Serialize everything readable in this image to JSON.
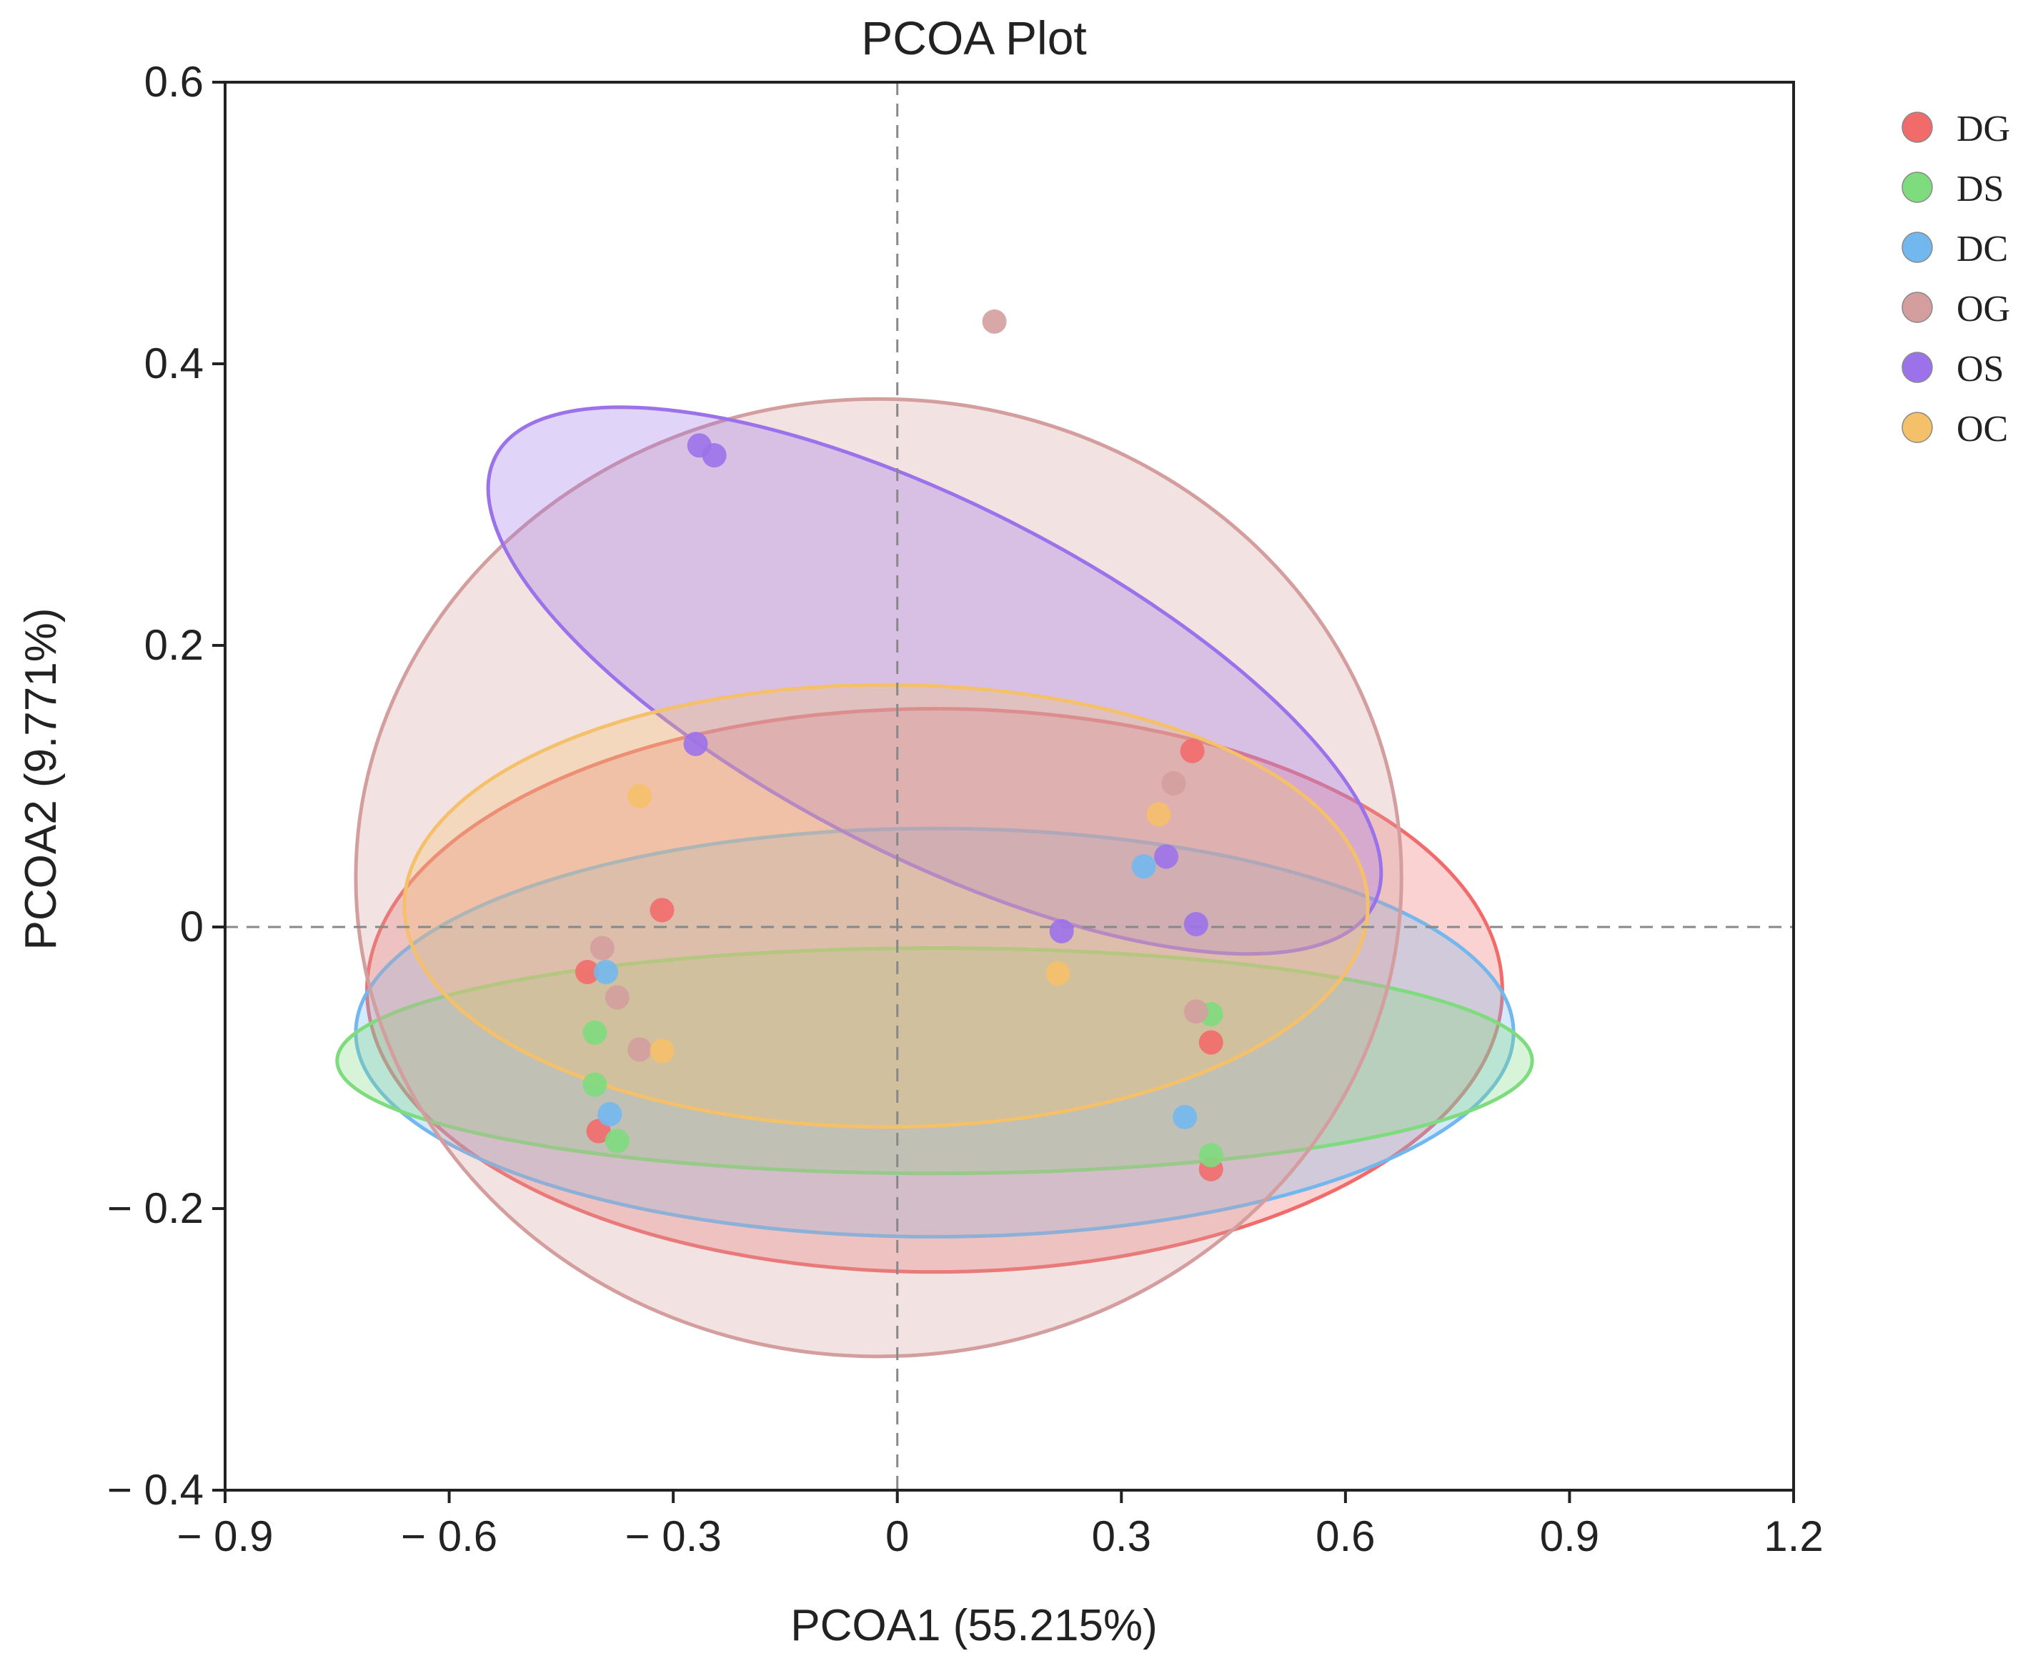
{
  "chart_data": {
    "type": "scatter",
    "title": "PCOA Plot",
    "xlabel": "PCOA1 (55.215%)",
    "ylabel": "PCOA2 (9.771%)",
    "xlim": [
      -0.9,
      1.2
    ],
    "ylim": [
      -0.4,
      0.6
    ],
    "xticks": [
      -0.9,
      -0.6,
      -0.3,
      0,
      0.3,
      0.6,
      0.9,
      1.2
    ],
    "xtick_labels": [
      "− 0.9",
      "− 0.6",
      "− 0.3",
      "0",
      "0.3",
      "0.6",
      "0.9",
      "1.2"
    ],
    "yticks": [
      0.6,
      0.4,
      0.2,
      0,
      -0.2,
      -0.4
    ],
    "ytick_labels": [
      "0.6",
      "0.4",
      "0.2",
      "0",
      "− 0.2",
      "− 0.4"
    ],
    "reference_lines": {
      "x": 0,
      "y": 0
    },
    "legend_position": "right",
    "series": [
      {
        "name": "DG",
        "color": "#f26b6b",
        "points": [
          [
            0.395,
            0.125
          ],
          [
            -0.315,
            0.012
          ],
          [
            -0.415,
            -0.032
          ],
          [
            0.42,
            -0.082
          ],
          [
            -0.4,
            -0.145
          ],
          [
            0.42,
            -0.172
          ]
        ],
        "ellipse": {
          "cx": 0.05,
          "cy": -0.045,
          "rx": 0.76,
          "ry": 0.2,
          "angle": 0
        }
      },
      {
        "name": "DS",
        "color": "#7edc7e",
        "points": [
          [
            -0.405,
            -0.075
          ],
          [
            -0.405,
            -0.112
          ],
          [
            -0.375,
            -0.152
          ],
          [
            0.42,
            -0.062
          ],
          [
            0.42,
            -0.162
          ]
        ],
        "ellipse": {
          "cx": 0.05,
          "cy": -0.095,
          "rx": 0.8,
          "ry": 0.08,
          "angle": 0
        }
      },
      {
        "name": "DC",
        "color": "#72b8ee",
        "points": [
          [
            -0.39,
            -0.032
          ],
          [
            -0.385,
            -0.133
          ],
          [
            0.33,
            0.043
          ],
          [
            0.385,
            -0.135
          ]
        ],
        "ellipse": {
          "cx": 0.05,
          "cy": -0.075,
          "rx": 0.775,
          "ry": 0.145,
          "angle": 0
        }
      },
      {
        "name": "OG",
        "color": "#d49e9e",
        "points": [
          [
            0.13,
            0.43
          ],
          [
            0.37,
            0.102
          ],
          [
            -0.395,
            -0.015
          ],
          [
            -0.375,
            -0.05
          ],
          [
            -0.345,
            -0.087
          ],
          [
            0.4,
            -0.06
          ]
        ],
        "ellipse": {
          "cx": -0.025,
          "cy": 0.035,
          "rx": 0.7,
          "ry": 0.34,
          "angle": 0
        }
      },
      {
        "name": "OS",
        "color": "#9c72ea",
        "points": [
          [
            -0.265,
            0.342
          ],
          [
            -0.245,
            0.335
          ],
          [
            -0.27,
            0.13
          ],
          [
            0.36,
            0.05
          ],
          [
            0.4,
            0.002
          ],
          [
            0.22,
            -0.003
          ]
        ],
        "ellipse": {
          "cx": 0.05,
          "cy": 0.175,
          "rx": 0.66,
          "ry": 0.125,
          "angle": -27
        }
      },
      {
        "name": "OC",
        "color": "#f5c06a",
        "points": [
          [
            -0.345,
            0.093
          ],
          [
            0.35,
            0.08
          ],
          [
            0.215,
            -0.033
          ],
          [
            -0.315,
            -0.088
          ]
        ],
        "ellipse": {
          "cx": -0.015,
          "cy": 0.015,
          "rx": 0.645,
          "ry": 0.157,
          "angle": 0
        }
      }
    ]
  }
}
